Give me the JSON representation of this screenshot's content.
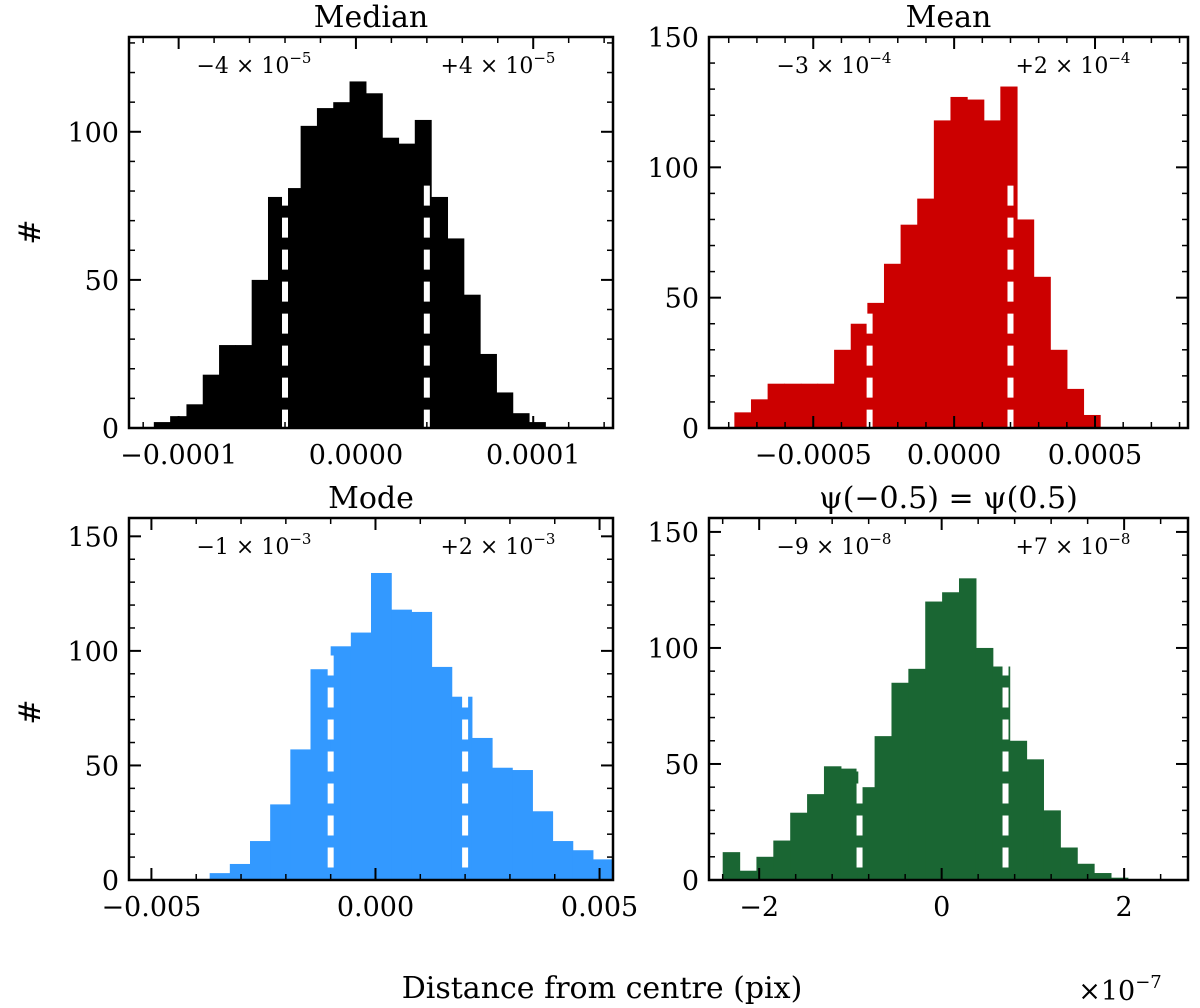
{
  "figure": {
    "xlabel": "Distance from centre (pix)",
    "ylabel": "#",
    "x_multiplier": "×10",
    "x_multiplier_exp": "−7"
  },
  "chart_data": [
    {
      "type": "bar",
      "title": "Median",
      "color": "#000000",
      "xlim": [
        -0.000128,
        0.000145
      ],
      "ylim": [
        0,
        132
      ],
      "yticks": [
        0,
        50,
        100
      ],
      "ytick_labels": [
        "0",
        "50",
        "100"
      ],
      "xticks": [
        -0.0001,
        0.0,
        0.0001
      ],
      "xtick_labels": [
        "−0.0001",
        "0.0000",
        "0.0001"
      ],
      "bin_start": -0.000114,
      "bin_width": 9.2e-06,
      "values": [
        2,
        4,
        8,
        18,
        28,
        28,
        50,
        78,
        81,
        102,
        108,
        110,
        117,
        113,
        98,
        96,
        104,
        78,
        64,
        45,
        25,
        12,
        5,
        2
      ],
      "lower": -4e-05,
      "upper": 4e-05,
      "lower_label": "−4 × 10",
      "lower_exp": "−5",
      "upper_label": "+4 × 10",
      "upper_exp": "−5"
    },
    {
      "type": "bar",
      "title": "Mean",
      "color": "#cc0000",
      "xlim": [
        -0.00087,
        0.00083
      ],
      "ylim": [
        0,
        150
      ],
      "yticks": [
        0,
        50,
        100,
        150
      ],
      "ytick_labels": [
        "0",
        "50",
        "100",
        "150"
      ],
      "xticks": [
        -0.0005,
        0.0,
        0.0005
      ],
      "xtick_labels": [
        "−0.0005",
        "0.0000",
        "0.0005"
      ],
      "bin_start": -0.00078,
      "bin_width": 5.9e-05,
      "values": [
        6,
        11,
        17,
        17,
        17,
        17,
        30,
        40,
        48,
        63,
        78,
        88,
        118,
        127,
        126,
        118,
        131,
        80,
        58,
        30,
        15,
        5
      ],
      "lower": -0.0003,
      "upper": 0.0002,
      "lower_label": "−3 × 10",
      "lower_exp": "−4",
      "upper_label": "+2 × 10",
      "upper_exp": "−4"
    },
    {
      "type": "bar",
      "title": "Mode",
      "color": "#3399ff",
      "xlim": [
        -0.0055,
        0.0053
      ],
      "ylim": [
        0,
        158
      ],
      "yticks": [
        0,
        50,
        100,
        150
      ],
      "ytick_labels": [
        "0",
        "50",
        "100",
        "150"
      ],
      "xticks": [
        -0.005,
        0.0,
        0.005
      ],
      "xtick_labels": [
        "−0.005",
        "0.000",
        "0.005"
      ],
      "bin_start": -0.0037,
      "bin_width": 0.00045,
      "values": [
        3,
        7,
        17,
        33,
        57,
        92,
        102,
        108,
        134,
        118,
        117,
        93,
        80,
        62,
        49,
        48,
        30,
        17,
        13,
        9
      ],
      "lower": -0.001,
      "upper": 0.002,
      "lower_label": "−1 × 10",
      "lower_exp": "−3",
      "upper_label": "+2 × 10",
      "upper_exp": "−3"
    },
    {
      "type": "bar",
      "title": "ψ(−0.5) = ψ(0.5)",
      "color": "#1a6633",
      "xlim": [
        -2.55e-07,
        2.7e-07
      ],
      "ylim": [
        0,
        156
      ],
      "yticks": [
        0,
        50,
        100,
        150
      ],
      "ytick_labels": [
        "0",
        "50",
        "100",
        "150"
      ],
      "xticks": [
        -2e-07,
        0,
        2e-07
      ],
      "xtick_labels": [
        "−2",
        "0",
        "2"
      ],
      "bin_start": -2.4e-07,
      "bin_width": 1.85e-08,
      "values": [
        12,
        4,
        10,
        17,
        29,
        37,
        49,
        48,
        40,
        62,
        85,
        91,
        120,
        124,
        130,
        100,
        92,
        60,
        52,
        30,
        14,
        7,
        3,
        1
      ],
      "lower": -9e-08,
      "upper": 7e-08,
      "lower_label": "−9 × 10",
      "lower_exp": "−8",
      "upper_label": "+7 × 10",
      "upper_exp": "−8"
    }
  ]
}
